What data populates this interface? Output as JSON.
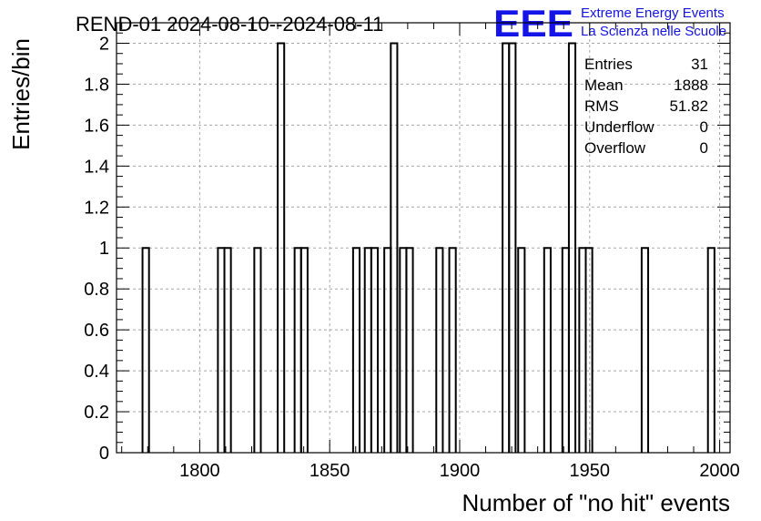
{
  "logo": {
    "mark": "EEE",
    "line1": "Extreme Energy Events",
    "line2": "La Scienza nelle Scuole",
    "color": "#1414e6"
  },
  "stats": [
    {
      "label": "Entries",
      "value": "31"
    },
    {
      "label": "Mean",
      "value": "1888"
    },
    {
      "label": "RMS",
      "value": "51.82"
    },
    {
      "label": "Underflow",
      "value": "0"
    },
    {
      "label": "Overflow",
      "value": "0"
    }
  ],
  "chart_data": {
    "type": "bar",
    "title": "REND-01 2024-08-10--2024-08-11",
    "xlabel": "Number of \"no hit\" events",
    "ylabel": "Entries/bin",
    "xlim": [
      1768,
      2004
    ],
    "ylim": [
      0,
      2.1
    ],
    "bin_width": 2.5,
    "grid": true,
    "x_ticks": [
      1800,
      1850,
      1900,
      1950,
      2000
    ],
    "y_ticks": [
      0,
      0.2,
      0.4,
      0.6,
      0.8,
      1,
      1.2,
      1.4,
      1.6,
      1.8,
      2
    ],
    "series": [
      {
        "bins": [
          {
            "x": 1778,
            "value": 1
          },
          {
            "x": 1807,
            "value": 1
          },
          {
            "x": 1809.5,
            "value": 1
          },
          {
            "x": 1821,
            "value": 1
          },
          {
            "x": 1830,
            "value": 2
          },
          {
            "x": 1836.5,
            "value": 1
          },
          {
            "x": 1839,
            "value": 1
          },
          {
            "x": 1859,
            "value": 1
          },
          {
            "x": 1863.5,
            "value": 1
          },
          {
            "x": 1866,
            "value": 1
          },
          {
            "x": 1871,
            "value": 1
          },
          {
            "x": 1873.5,
            "value": 2
          },
          {
            "x": 1877,
            "value": 1
          },
          {
            "x": 1879.5,
            "value": 1
          },
          {
            "x": 1891,
            "value": 1
          },
          {
            "x": 1896,
            "value": 1
          },
          {
            "x": 1916.5,
            "value": 2
          },
          {
            "x": 1919,
            "value": 2
          },
          {
            "x": 1922.5,
            "value": 1
          },
          {
            "x": 1932.5,
            "value": 1
          },
          {
            "x": 1939.5,
            "value": 1
          },
          {
            "x": 1942,
            "value": 2
          },
          {
            "x": 1946,
            "value": 1
          },
          {
            "x": 1948.5,
            "value": 1
          },
          {
            "x": 1970,
            "value": 1
          },
          {
            "x": 1995.5,
            "value": 1
          }
        ]
      }
    ]
  }
}
